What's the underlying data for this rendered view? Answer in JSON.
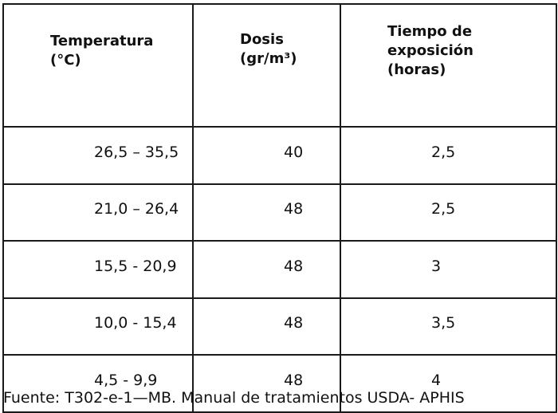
{
  "table": {
    "header": [
      [
        "Temperatura",
        "(°C)"
      ],
      [
        "Dosis",
        "(gr/m³)"
      ],
      [
        "Tiempo de",
        "exposición",
        "(horas)"
      ]
    ],
    "rows": [
      [
        "26,5 – 35,5",
        "40",
        "2,5"
      ],
      [
        "21,0 – 26,4",
        "48",
        "2,5"
      ],
      [
        "15,5 - 20,9",
        "48",
        "3"
      ],
      [
        "10,0 - 15,4",
        "48",
        "3,5"
      ],
      [
        "4,5 - 9,9",
        "48",
        "4"
      ]
    ]
  },
  "caption": "Fuente: T302-e-1—MB. Manual de tratamientos USDA- APHIS"
}
